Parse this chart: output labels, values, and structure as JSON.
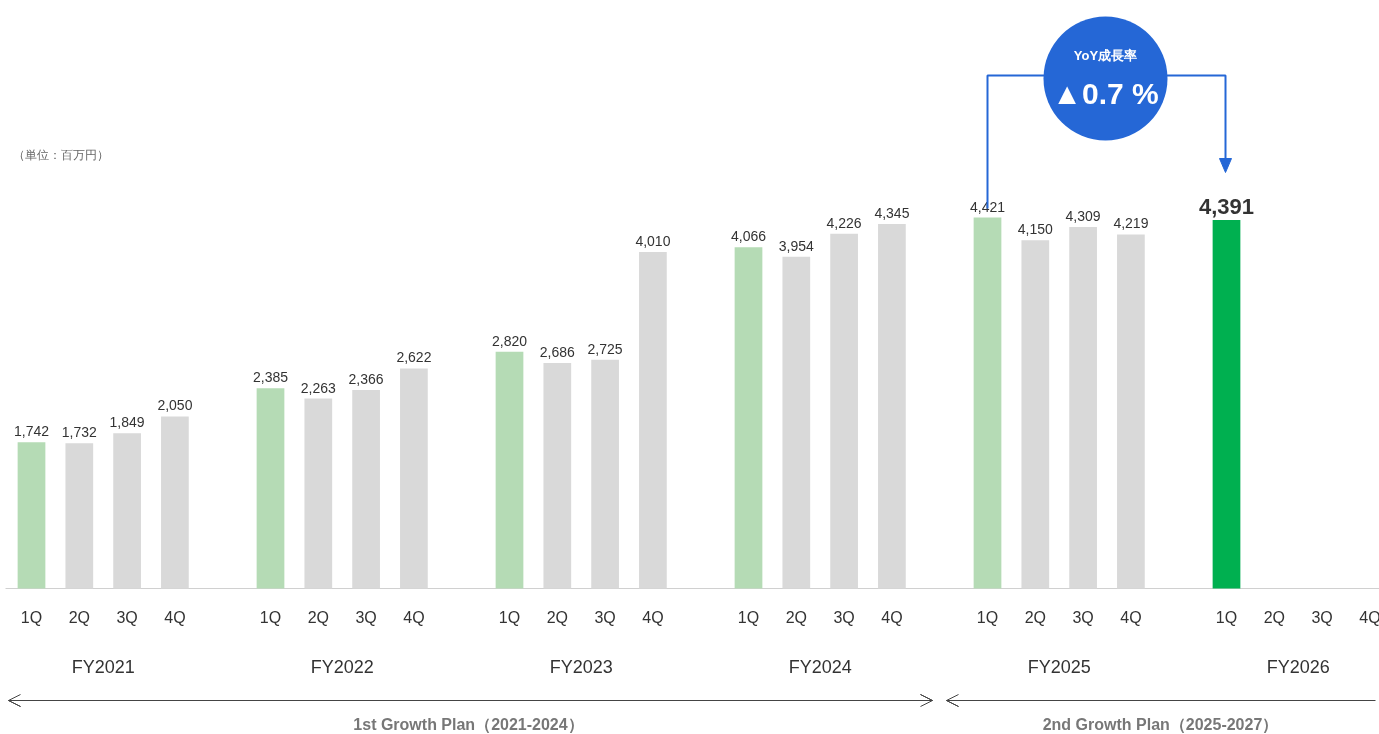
{
  "chart_data": {
    "type": "bar",
    "categories": [
      "1Q",
      "2Q",
      "3Q",
      "4Q",
      "1Q",
      "2Q",
      "3Q",
      "4Q",
      "1Q",
      "2Q",
      "3Q",
      "4Q",
      "1Q",
      "2Q",
      "3Q",
      "4Q",
      "1Q",
      "2Q",
      "3Q",
      "4Q",
      "1Q",
      "2Q",
      "3Q",
      "4Q"
    ],
    "values": [
      1742,
      1732,
      1849,
      2050,
      2385,
      2263,
      2366,
      2622,
      2820,
      2686,
      2725,
      4010,
      4066,
      3954,
      4226,
      4345,
      4421,
      4150,
      4309,
      4219,
      4391,
      null,
      null,
      null
    ],
    "colors": [
      "#b5dbb5",
      "#d9d9d9",
      "#d9d9d9",
      "#d9d9d9",
      "#b5dbb5",
      "#d9d9d9",
      "#d9d9d9",
      "#d9d9d9",
      "#b5dbb5",
      "#d9d9d9",
      "#d9d9d9",
      "#d9d9d9",
      "#b5dbb5",
      "#d9d9d9",
      "#d9d9d9",
      "#d9d9d9",
      "#b5dbb5",
      "#d9d9d9",
      "#d9d9d9",
      "#d9d9d9",
      "#00b050",
      "#d9d9d9",
      "#d9d9d9",
      "#d9d9d9"
    ],
    "value_labels": [
      "1,742",
      "1,732",
      "1,849",
      "2,050",
      "2,385",
      "2,263",
      "2,366",
      "2,622",
      "2,820",
      "2,686",
      "2,725",
      "4,010",
      "4,066",
      "3,954",
      "4,226",
      "4,345",
      "4,421",
      "4,150",
      "4,309",
      "4,219",
      "4,391",
      null,
      null,
      null
    ],
    "grid": false,
    "annotations": [
      "（単位：百万円）",
      "FY2021",
      "FY2022",
      "FY2023",
      "FY2024",
      "FY2025",
      "FY2026",
      "1st Growth Plan（2021-2024）",
      "2nd Growth Plan（2025-2027）",
      "YoY成長率",
      "▲0.7 %"
    ]
  }
}
